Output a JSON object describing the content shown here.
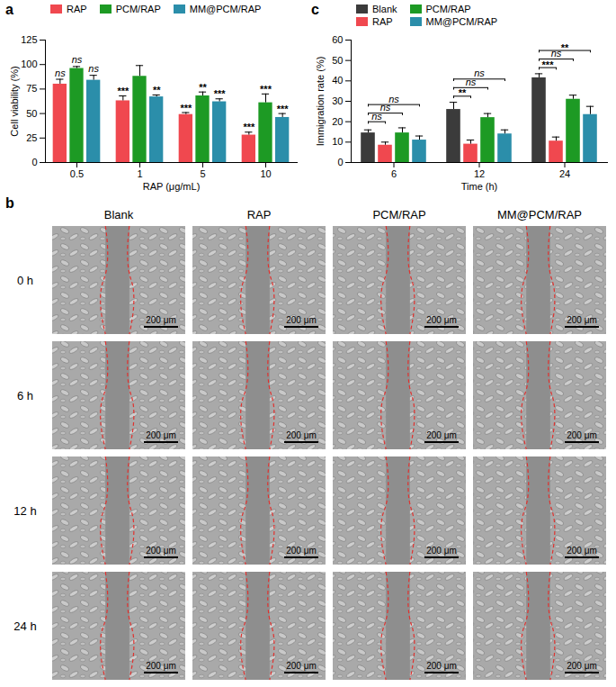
{
  "chart_data": [
    {
      "type": "bar",
      "title": "a",
      "x_label": "RAP (μg/mL)",
      "y_label": "Cell viability (%)",
      "categories": [
        "0.5",
        "1",
        "5",
        "10"
      ],
      "series": [
        {
          "name": "RAP",
          "color": "#f0484f",
          "values": [
            80,
            63,
            49,
            28
          ],
          "errors": [
            5,
            5,
            2,
            3
          ],
          "significance": [
            "ns",
            "***",
            "***",
            "***"
          ]
        },
        {
          "name": "PCM/RAP",
          "color": "#1d9a24",
          "values": [
            96,
            88,
            68,
            61
          ],
          "errors": [
            2,
            11,
            4,
            9
          ],
          "significance": [
            "ns",
            null,
            "**",
            "***"
          ]
        },
        {
          "name": "MM@PCM/RAP",
          "color": "#2b8eaa",
          "values": [
            84,
            67,
            62,
            46
          ],
          "errors": [
            5,
            2,
            3,
            4
          ],
          "significance": [
            "ns",
            "**",
            "***",
            "***"
          ]
        }
      ],
      "ylim": [
        0,
        125
      ],
      "yticks": [
        0,
        25,
        50,
        75,
        100,
        125
      ],
      "legend": "top"
    },
    {
      "type": "bar",
      "title": "c",
      "x_label": "Time (h)",
      "y_label": "Immigration rate (%)",
      "categories": [
        "6",
        "12",
        "24"
      ],
      "series": [
        {
          "name": "Blank",
          "color": "#3b3b3b",
          "values": [
            14.5,
            26,
            41.5
          ],
          "errors": [
            1.5,
            3.5,
            2
          ]
        },
        {
          "name": "RAP",
          "color": "#f0484f",
          "values": [
            8.5,
            9,
            10.5
          ],
          "errors": [
            1.5,
            2,
            2
          ]
        },
        {
          "name": "PCM/RAP",
          "color": "#1d9a24",
          "values": [
            14.5,
            22,
            31
          ],
          "errors": [
            2.5,
            2,
            2
          ]
        },
        {
          "name": "MM@PCM/RAP",
          "color": "#2b8eaa",
          "values": [
            11,
            14,
            23.5
          ],
          "errors": [
            2,
            2,
            4
          ]
        }
      ],
      "comparisons": [
        {
          "category": "6",
          "from": "Blank",
          "to": "RAP",
          "label": "ns"
        },
        {
          "category": "6",
          "from": "Blank",
          "to": "PCM/RAP",
          "label": "ns"
        },
        {
          "category": "6",
          "from": "Blank",
          "to": "MM@PCM/RAP",
          "label": "ns"
        },
        {
          "category": "12",
          "from": "Blank",
          "to": "RAP",
          "label": "**"
        },
        {
          "category": "12",
          "from": "Blank",
          "to": "PCM/RAP",
          "label": "ns"
        },
        {
          "category": "12",
          "from": "Blank",
          "to": "MM@PCM/RAP",
          "label": "ns"
        },
        {
          "category": "24",
          "from": "Blank",
          "to": "RAP",
          "label": "***"
        },
        {
          "category": "24",
          "from": "Blank",
          "to": "PCM/RAP",
          "label": "ns"
        },
        {
          "category": "24",
          "from": "Blank",
          "to": "MM@PCM/RAP",
          "label": "**"
        }
      ],
      "ylim": [
        0,
        60
      ],
      "yticks": [
        0,
        10,
        20,
        30,
        40,
        50,
        60
      ],
      "legend": "top"
    }
  ],
  "image_panel": {
    "title": "b",
    "columns": [
      "Blank",
      "RAP",
      "PCM/RAP",
      "MM@PCM/RAP"
    ],
    "rows": [
      "0 h",
      "6 h",
      "12 h",
      "24 h"
    ],
    "scale_bar": "200 μm"
  }
}
